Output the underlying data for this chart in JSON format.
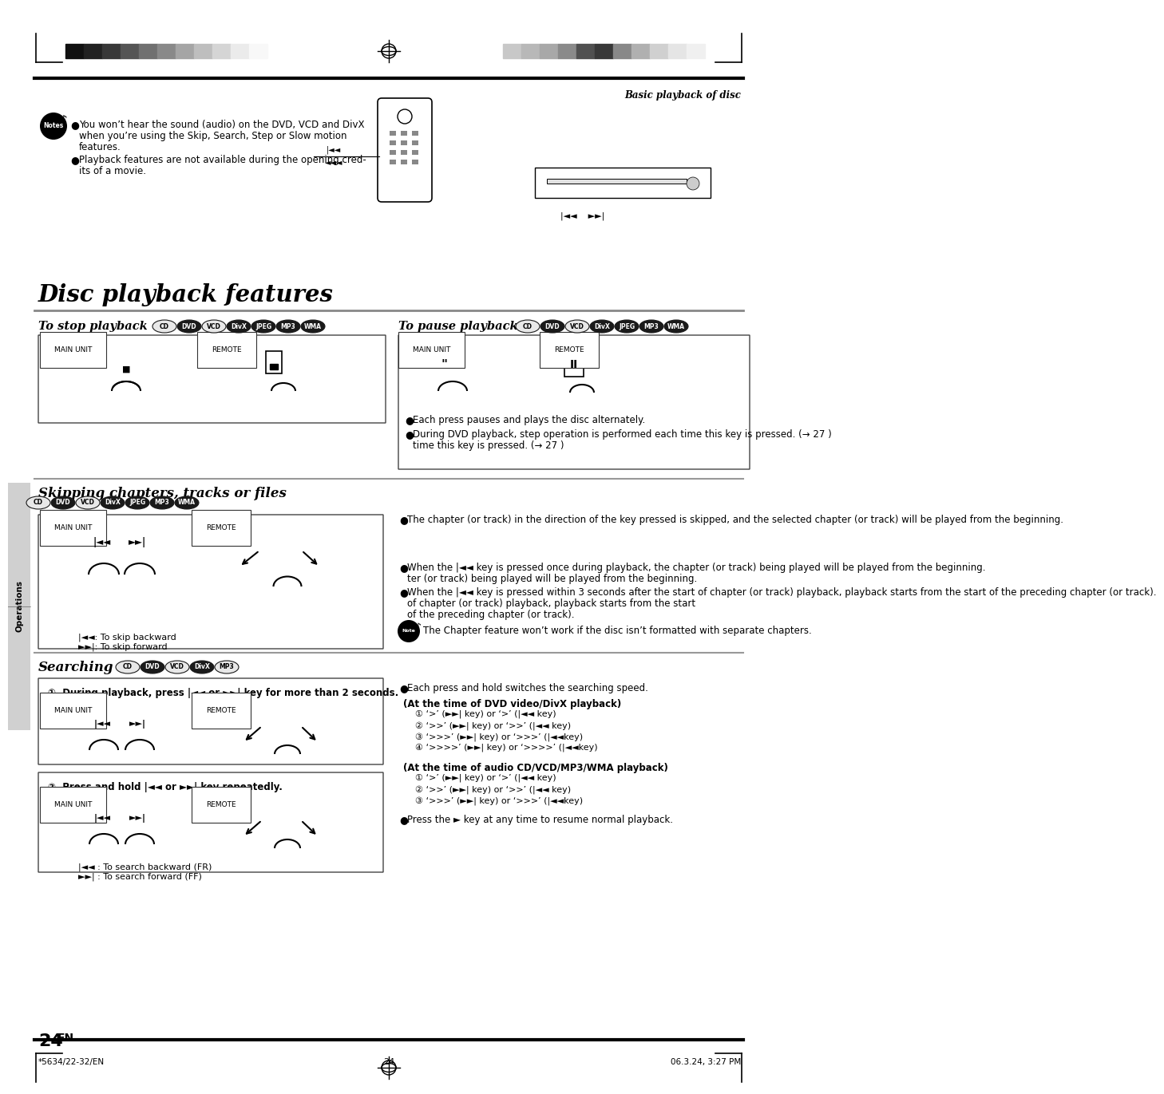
{
  "page_bg": "#ffffff",
  "header_text": "Basic playback of disc",
  "section_title": "Disc playback features",
  "sub_stop": "To stop playback",
  "sub_pause": "To pause playback",
  "sub_skip": "Skipping chapters, tracks or files",
  "sub_search": "Searching",
  "page_number": "24",
  "footer_left": "*5634/22-32/EN",
  "footer_center": "24",
  "footer_right": "06.3.24, 3:27 PM",
  "operations_label": "Operations",
  "colors_left": [
    "#111111",
    "#222222",
    "#383838",
    "#555555",
    "#707070",
    "#898989",
    "#a5a5a5",
    "#bebebe",
    "#d5d5d5",
    "#ebebeb",
    "#f8f8f8"
  ],
  "colors_right": [
    "#c8c8c8",
    "#b8b8b8",
    "#a8a8a8",
    "#8a8a8a",
    "#505050",
    "#383838",
    "#888888",
    "#b0b0b0",
    "#d0d0d0",
    "#e5e5e5",
    "#f0f0f0"
  ],
  "notes_b1": "You won’t hear the sound (audio) on the DVD, VCD and DivX when you’re using the Skip, Search, Step or Slow motion features.",
  "notes_b2": "Playback features are not available during the opening cred-its of a movie.",
  "pause_b1": "Each press pauses and plays the disc alternately.",
  "pause_b2": "During DVD playback, step operation is performed each time this key is pressed. (→ 27 )",
  "skip_b1": "The chapter (or track) in the direction of the key pressed is skipped, and the selected chapter (or track) will be played from the beginning.",
  "skip_b2": "When the |◄◄ key is pressed once during playback, the chapter (or track) being played will be played from the beginning.",
  "skip_b3": "When the |◄◄ key is pressed within 3 seconds after the start of chapter (or track) playback, playback starts from the start of the preceding chapter (or track).",
  "skip_note": "The Chapter feature won’t work if the disc isn’t formatted with separate chapters.",
  "skip_leg1": "|◄◄: To skip backward",
  "skip_leg2": "►►|: To skip forward",
  "search_step1": "①  During playback, press |◄◄ or ►►| key for more than 2 seconds.",
  "search_step2": "②  Press and hold |◄◄ or ►►| key repeatedly.",
  "search_b0": "Each press and hold switches the searching speed.",
  "search_dvd_title": "(At the time of DVD video/DivX playback)",
  "search_dvd": [
    "① ‘>’ (►►| key) or ‘>’ (|◄◄ key)",
    "② ‘>>’ (►►| key) or ‘>>’ (|◄◄ key)",
    "③ ‘>>>’ (►►| key) or ‘>>>’ (|◄◄key)",
    "④ ‘>>>>’ (►►| key) or ‘>>>>’ (|◄◄key)"
  ],
  "search_cd_title": "(At the time of audio CD/VCD/MP3/WMA playback)",
  "search_cd": [
    "① ‘>’ (►►| key) or ‘>’ (|◄◄ key)",
    "② ‘>>’ (►►| key) or ‘>>’ (|◄◄ key)",
    "③ ‘>>>’ (►►| key) or ‘>>>’ (|◄◄key)"
  ],
  "search_resume": "Press the ► key at any time to resume normal playback.",
  "search_leg1": "|◄◄ : To search backward (FR)",
  "search_leg2": "►►| : To search forward (FF)"
}
